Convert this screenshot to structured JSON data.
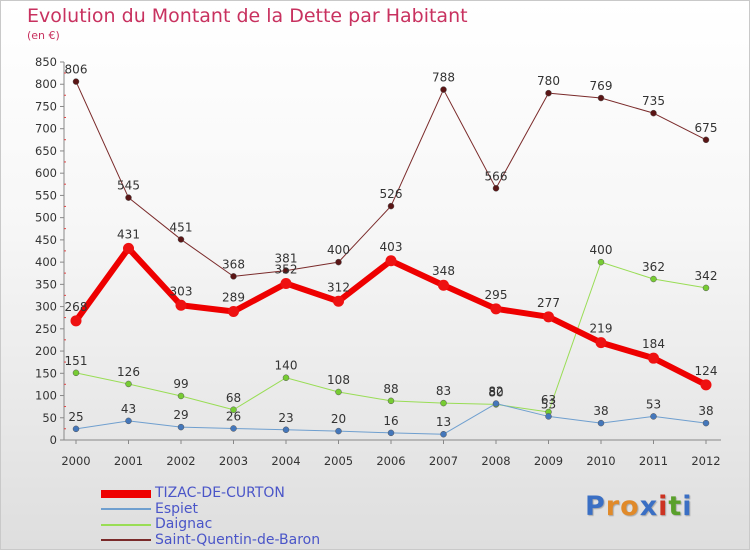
{
  "title": "Evolution du Montant de la Dette par Habitant",
  "unit_label": "(en €)",
  "logo_text": "Proxiti",
  "chart_data": {
    "type": "line",
    "title": "Evolution du Montant de la Dette par Habitant",
    "ylabel": "(en €)",
    "xlabel": "",
    "x": [
      "2000",
      "2001",
      "2002",
      "2003",
      "2004",
      "2005",
      "2006",
      "2007",
      "2008",
      "2009",
      "2010",
      "2011",
      "2012"
    ],
    "ylim": [
      0,
      850
    ],
    "yticks": [
      0,
      50,
      100,
      150,
      200,
      250,
      300,
      350,
      400,
      450,
      500,
      550,
      600,
      650,
      700,
      750,
      800,
      850
    ],
    "grid": false,
    "legend_position": "bottom-left",
    "series": [
      {
        "name": "Saint-Quentin-de-Baron",
        "color": "#7a2a2a",
        "marker": "#5a1515",
        "width": 1,
        "values": [
          806,
          545,
          451,
          368,
          381,
          400,
          526,
          788,
          566,
          780,
          769,
          735,
          675
        ]
      },
      {
        "name": "Daignac",
        "color": "#99dd55",
        "marker": "#77cc33",
        "width": 1,
        "values": [
          151,
          126,
          99,
          68,
          140,
          108,
          88,
          83,
          80,
          63,
          400,
          362,
          342
        ]
      },
      {
        "name": "Espiet",
        "color": "#6f9fcf",
        "marker": "#4477bb",
        "width": 1,
        "values": [
          25,
          43,
          29,
          26,
          23,
          20,
          16,
          13,
          82,
          53,
          38,
          53,
          38
        ]
      },
      {
        "name": "TIZAC-DE-CURTON",
        "color": "#ee0000",
        "marker": "#ee1111",
        "width": 6,
        "values": [
          268,
          431,
          303,
          289,
          352,
          312,
          403,
          348,
          295,
          277,
          219,
          184,
          124
        ]
      }
    ],
    "legend_order": [
      "TIZAC-DE-CURTON",
      "Espiet",
      "Daignac",
      "Saint-Quentin-de-Baron"
    ]
  }
}
